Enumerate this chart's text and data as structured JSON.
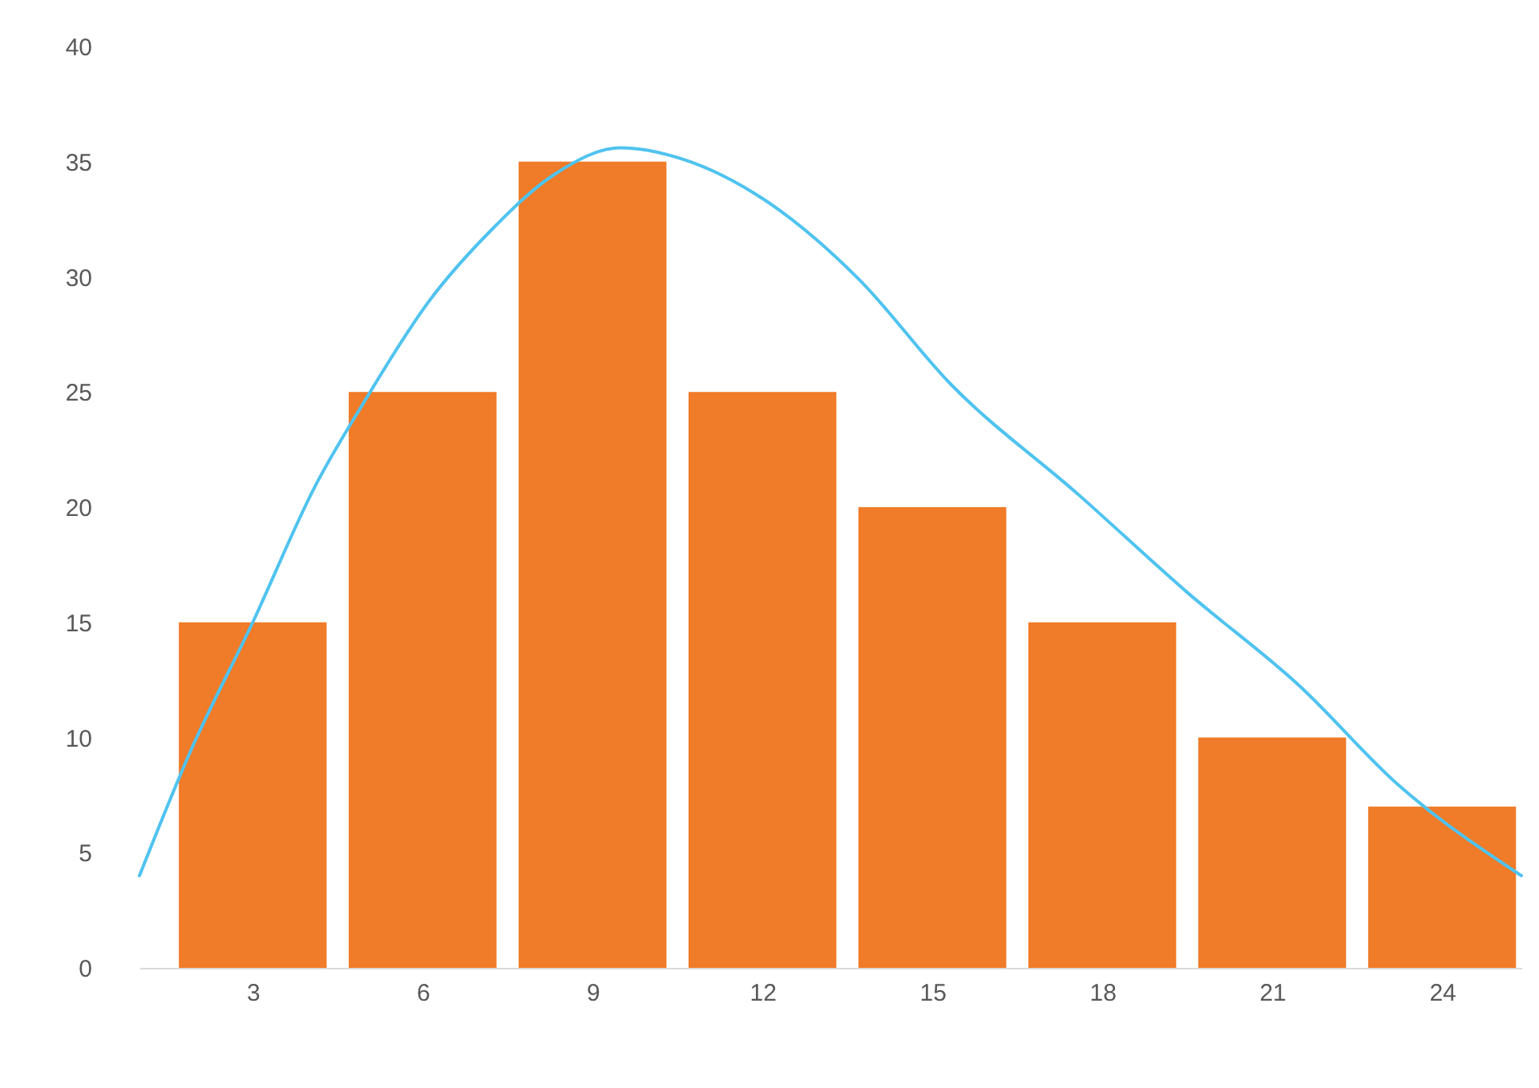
{
  "chart_data": {
    "type": "bar",
    "x": [
      3,
      6,
      9,
      12,
      15,
      18,
      21,
      24
    ],
    "xlim": [
      1,
      25.4
    ],
    "xticks": [
      3,
      6,
      9,
      12,
      15,
      18,
      21,
      24
    ],
    "ylim": [
      0,
      40
    ],
    "yticks": [
      0,
      5,
      10,
      15,
      20,
      25,
      30,
      35,
      40
    ],
    "series": [
      {
        "color": "#f07b28",
        "values": [
          15,
          25,
          35,
          25,
          20,
          15,
          10,
          7
        ]
      },
      {
        "type": "line",
        "color": "#4fc3f0",
        "x": [
          1,
          1.9,
          3,
          4.1,
          5,
          6.1,
          7.2,
          8.3,
          9.5,
          10.6,
          12,
          13.7,
          15.3,
          17.6,
          19.5,
          21.5,
          23.2,
          25.4
        ],
        "values": [
          4,
          9.4,
          15,
          20.9,
          24.7,
          28.9,
          32,
          34.4,
          35.6,
          35.1,
          33.4,
          29.9,
          25.4,
          20.5,
          16.3,
          12.2,
          8,
          4
        ]
      }
    ]
  }
}
